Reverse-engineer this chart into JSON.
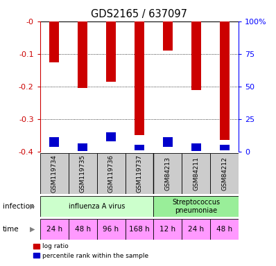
{
  "title": "GDS2165 / 637097",
  "samples": [
    "GSM119734",
    "GSM119735",
    "GSM119736",
    "GSM119737",
    "GSM84213",
    "GSM84211",
    "GSM84212"
  ],
  "log_ratio": [
    -0.125,
    -0.205,
    -0.185,
    -0.35,
    -0.09,
    -0.21,
    -0.365
  ],
  "blue_top": [
    -0.355,
    -0.375,
    -0.34,
    -0.38,
    -0.355,
    -0.375,
    -0.378
  ],
  "blue_bottom": [
    -0.385,
    -0.398,
    -0.368,
    -0.397,
    -0.385,
    -0.398,
    -0.396
  ],
  "ylim": [
    -0.4,
    0.0
  ],
  "yticks": [
    0.0,
    -0.1,
    -0.2,
    -0.3,
    -0.4
  ],
  "ytick_labels": [
    "-0",
    "-0.1",
    "-0.2",
    "-0.3",
    "-0.4"
  ],
  "right_ytick_labels": [
    "100%",
    "75",
    "50",
    "25",
    "0"
  ],
  "red_color": "#cc0000",
  "blue_color": "#0000cc",
  "infection_groups": [
    {
      "label": "influenza A virus",
      "start": 0,
      "end": 4,
      "color": "#ccffcc"
    },
    {
      "label": "Streptococcus\npneumoniae",
      "start": 4,
      "end": 7,
      "color": "#99ee99"
    }
  ],
  "time_labels": [
    "24 h",
    "48 h",
    "96 h",
    "168 h",
    "12 h",
    "24 h",
    "48 h"
  ],
  "time_color": "#ff99ff",
  "sample_bg_color": "#cccccc",
  "bar_width": 0.35
}
